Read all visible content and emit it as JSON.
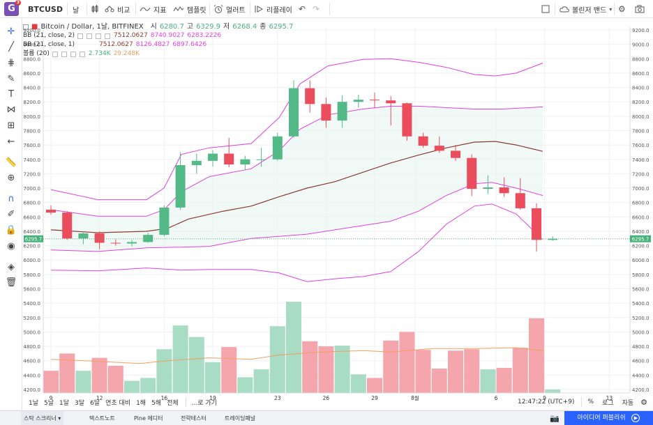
{
  "topbar": {
    "logo_letter": "G",
    "logo_badge": "3",
    "symbol": "BTCUSD",
    "interval": "날",
    "compare_label": "비교",
    "indicators_label": "지표",
    "templates_label": "템플릿",
    "alerts_label": "얼러트",
    "replay_label": "리플레이",
    "undo_icon": "↶",
    "redo_icon": "↷",
    "layout_label": "볼린저 밴드"
  },
  "legend": {
    "title": "Bitcoin / Dollar, 1날, BITFINEX",
    "o_label": "시",
    "o_value": "6280.7",
    "h_label": "고",
    "h_value": "6329.9",
    "l_label": "저",
    "l_value": "6268.4",
    "c_label": "종",
    "c_value": "6295.7",
    "bb2_label": "BB (21, close, 2)",
    "bb2_mid": "7512.0627",
    "bb2_up": "8740.9027",
    "bb2_low": "6283.2226",
    "bb1_label": "BB (21, close, 1)",
    "bb1_mid": "7512.0627",
    "bb1_up": "8126.4827",
    "bb1_low": "6897.6426",
    "vol_label": "볼륨 (20)",
    "vol_value": "2.734K",
    "vol_ma": "29.248K"
  },
  "colors": {
    "up": "#53b987",
    "down": "#eb4d5c",
    "vol_up": "#a8dcc4",
    "vol_down": "#f4a6ac",
    "band_outer": "#e040e0",
    "band_mid": "#8b3a2e",
    "vol_ma": "#f0a060",
    "price_label": "#48b17a"
  },
  "chart_data": {
    "type": "candlestick",
    "price_axis_ticks": [
      "9200.0",
      "9000.0",
      "8800.0",
      "8600.0",
      "8400.0",
      "8200.0",
      "8000.0",
      "7800.0",
      "7600.0",
      "7400.0",
      "7200.0",
      "7000.0",
      "6800.0",
      "6600.0",
      "6400.0",
      "6200.0",
      "6000.0",
      "5800.0",
      "5600.0",
      "5400.0",
      "5200.0",
      "5000.0",
      "4800.0",
      "4600.0",
      "4400.0",
      "4200.0"
    ],
    "x_axis_ticks": [
      "9",
      "12",
      "16",
      "19",
      "23",
      "26",
      "29",
      "8월",
      "6",
      "9",
      "13"
    ],
    "last_price_label": "6295.7",
    "candles": [
      {
        "o": 6700,
        "h": 6760,
        "l": 6630,
        "c": 6660
      },
      {
        "o": 6660,
        "h": 6680,
        "l": 6280,
        "c": 6300
      },
      {
        "o": 6300,
        "h": 6380,
        "l": 6220,
        "c": 6370
      },
      {
        "o": 6370,
        "h": 6400,
        "l": 6150,
        "c": 6240
      },
      {
        "o": 6240,
        "h": 6290,
        "l": 6200,
        "c": 6230
      },
      {
        "o": 6230,
        "h": 6280,
        "l": 6190,
        "c": 6250
      },
      {
        "o": 6250,
        "h": 6380,
        "l": 6240,
        "c": 6350
      },
      {
        "o": 6350,
        "h": 6760,
        "l": 6330,
        "c": 6730
      },
      {
        "o": 6730,
        "h": 7500,
        "l": 6700,
        "c": 7320
      },
      {
        "o": 7320,
        "h": 7480,
        "l": 7200,
        "c": 7380
      },
      {
        "o": 7380,
        "h": 7530,
        "l": 7300,
        "c": 7480
      },
      {
        "o": 7480,
        "h": 7700,
        "l": 7290,
        "c": 7330
      },
      {
        "o": 7330,
        "h": 7450,
        "l": 7250,
        "c": 7400
      },
      {
        "o": 7400,
        "h": 7560,
        "l": 7300,
        "c": 7400
      },
      {
        "o": 7400,
        "h": 7770,
        "l": 7380,
        "c": 7720
      },
      {
        "o": 7720,
        "h": 8500,
        "l": 7700,
        "c": 8390
      },
      {
        "o": 8390,
        "h": 8500,
        "l": 8050,
        "c": 8170
      },
      {
        "o": 8170,
        "h": 8260,
        "l": 7840,
        "c": 7940
      },
      {
        "o": 7940,
        "h": 8290,
        "l": 7840,
        "c": 8200
      },
      {
        "o": 8200,
        "h": 8300,
        "l": 8120,
        "c": 8230
      },
      {
        "o": 8230,
        "h": 8330,
        "l": 8110,
        "c": 8220
      },
      {
        "o": 8220,
        "h": 8280,
        "l": 7870,
        "c": 8180
      },
      {
        "o": 8180,
        "h": 8190,
        "l": 7660,
        "c": 7720
      },
      {
        "o": 7720,
        "h": 7770,
        "l": 7560,
        "c": 7590
      },
      {
        "o": 7590,
        "h": 7720,
        "l": 7490,
        "c": 7520
      },
      {
        "o": 7520,
        "h": 7600,
        "l": 7380,
        "c": 7420
      },
      {
        "o": 7420,
        "h": 7470,
        "l": 6890,
        "c": 6990
      },
      {
        "o": 6990,
        "h": 7180,
        "l": 6920,
        "c": 7010
      },
      {
        "o": 7010,
        "h": 7150,
        "l": 6880,
        "c": 6930
      },
      {
        "o": 6930,
        "h": 7140,
        "l": 6700,
        "c": 6720
      },
      {
        "o": 6720,
        "h": 6790,
        "l": 6120,
        "c": 6280
      },
      {
        "o": 6280,
        "h": 6330,
        "l": 6268,
        "c": 6296
      }
    ],
    "bb2_upper": [
      8440,
      8430,
      8470,
      8600,
      8730,
      8800,
      8780,
      8720,
      8700,
      8720,
      8740,
      8760,
      8720,
      8780,
      8830
    ],
    "bb1_upper": [
      7840,
      7830,
      7860,
      7970,
      8100,
      8160,
      8140,
      8120,
      8120,
      8130,
      8140
    ],
    "volume": [
      4460,
      4700,
      4460,
      4640,
      4530,
      4320,
      4360,
      4760,
      5090,
      4930,
      4580,
      4790,
      4370,
      4480,
      5080,
      5420,
      4870,
      4800,
      4810,
      4410,
      4360,
      4880,
      5000,
      4750,
      4490,
      4740,
      4760,
      4480,
      4500,
      4780,
      5190,
      4200
    ]
  },
  "bottombar": {
    "r1": "1날",
    "r2": "5날",
    "r3": "1달",
    "r4": "3달",
    "r5": "6달",
    "r6": "연초 대비",
    "r7": "1해",
    "r8": "5해",
    "r9": "전체",
    "goto": "...로 가기",
    "time": "12:47:22 (UTC+9)",
    "pct": "%",
    "log": "로그",
    "auto": "자동"
  },
  "footer": {
    "tab1": "스탁 스크리너",
    "tab2": "텍스트노트",
    "tab3": "Pine 에디터",
    "tab4": "전략테스터",
    "tab5": "트레이딩패널",
    "publish": "아이디어 퍼블리쉬"
  }
}
